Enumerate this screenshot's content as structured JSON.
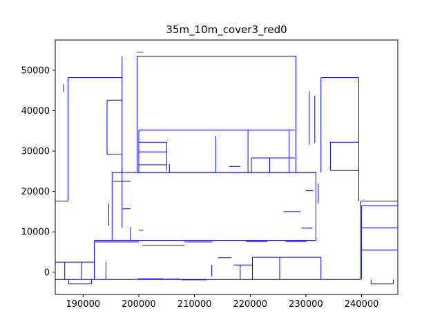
{
  "chart_data": {
    "type": "line",
    "title": "35m_10m_cover3_red0",
    "xlabel": "",
    "ylabel": "",
    "xlim": [
      185000,
      246500
    ],
    "ylim": [
      -5500,
      57500
    ],
    "xticks": [
      190000,
      200000,
      210000,
      220000,
      230000,
      240000
    ],
    "yticks": [
      0,
      10000,
      20000,
      30000,
      40000,
      50000
    ],
    "xtick_labels": [
      "190000",
      "200000",
      "210000",
      "220000",
      "230000",
      "240000"
    ],
    "ytick_labels": [
      "0",
      "10000",
      "20000",
      "30000",
      "40000",
      "50000"
    ],
    "grid": false,
    "line_color": "#0000ff",
    "series": [
      {
        "segments": [
          [
            [
              199700,
              53500
            ],
            [
              228200,
              53500
            ]
          ],
          [
            [
              199700,
              53500
            ],
            [
              199700,
              24700
            ]
          ],
          [
            [
              228200,
              53500
            ],
            [
              228200,
              24700
            ]
          ],
          [
            [
              200000,
              35200
            ],
            [
              228000,
              35200
            ]
          ],
          [
            [
              200000,
              24700
            ],
            [
              231800,
              24700
            ]
          ],
          [
            [
              195200,
              24700
            ],
            [
              231800,
              24700
            ]
          ],
          [
            [
              195200,
              24700
            ],
            [
              195200,
              7900
            ]
          ],
          [
            [
              231800,
              24700
            ],
            [
              231800,
              7900
            ]
          ],
          [
            [
              192000,
              7900
            ],
            [
              231800,
              7900
            ]
          ],
          [
            [
              192000,
              7900
            ],
            [
              192000,
              -1800
            ]
          ],
          [
            [
              185000,
              2500
            ],
            [
              192000,
              2500
            ]
          ],
          [
            [
              185000,
              -1800
            ],
            [
              239800,
              -1800
            ]
          ],
          [
            [
              239800,
              -1800
            ],
            [
              239800,
              17600
            ]
          ],
          [
            [
              239800,
              17600
            ],
            [
              246500,
              17600
            ]
          ],
          [
            [
              187300,
              48200
            ],
            [
              197000,
              48200
            ]
          ],
          [
            [
              187300,
              48200
            ],
            [
              187300,
              17600
            ]
          ],
          [
            [
              185000,
              17600
            ],
            [
              187300,
              17600
            ]
          ],
          [
            [
              185000,
              17600
            ],
            [
              185000,
              -1800
            ]
          ],
          [
            [
              197000,
              48200
            ],
            [
              197000,
              24700
            ]
          ],
          [
            [
              232700,
              48200
            ],
            [
              239500,
              48200
            ]
          ],
          [
            [
              232700,
              48200
            ],
            [
              232700,
              24700
            ]
          ],
          [
            [
              239500,
              48200
            ],
            [
              239500,
              17600
            ]
          ],
          [
            [
              194300,
              42600
            ],
            [
              194300,
              29200
            ]
          ],
          [
            [
              194300,
              29200
            ],
            [
              197000,
              29200
            ]
          ],
          [
            [
              194300,
              42600
            ],
            [
              197000,
              42600
            ]
          ],
          [
            [
              234400,
              32200
            ],
            [
              239500,
              32200
            ]
          ],
          [
            [
              234400,
              32200
            ],
            [
              234400,
              25200
            ]
          ],
          [
            [
              234400,
              25200
            ],
            [
              239500,
              25200
            ]
          ],
          [
            [
              200000,
              35200
            ],
            [
              200000,
              24700
            ]
          ],
          [
            [
              205000,
              32200
            ],
            [
              205000,
              25200
            ]
          ],
          [
            [
              200000,
              32200
            ],
            [
              205000,
              32200
            ]
          ],
          [
            [
              200000,
              29800
            ],
            [
              205000,
              29800
            ]
          ],
          [
            [
              200000,
              26600
            ],
            [
              205000,
              26600
            ]
          ],
          [
            [
              205500,
              26800
            ],
            [
              205500,
              24700
            ]
          ],
          [
            [
              213800,
              33700
            ],
            [
              213800,
              24700
            ]
          ],
          [
            [
              219600,
              35200
            ],
            [
              219600,
              24700
            ]
          ],
          [
            [
              220200,
              28300
            ],
            [
              228000,
              28300
            ]
          ],
          [
            [
              220200,
              28300
            ],
            [
              220200,
              24700
            ]
          ],
          [
            [
              223500,
              28300
            ],
            [
              223500,
              24700
            ]
          ],
          [
            [
              227000,
              35200
            ],
            [
              227000,
              24700
            ]
          ],
          [
            [
              197000,
              25700
            ],
            [
              197000,
              11000
            ]
          ],
          [
            [
              195400,
              22500
            ],
            [
              198500,
              22500
            ]
          ],
          [
            [
              197000,
              15700
            ],
            [
              198500,
              15700
            ]
          ],
          [
            [
              194600,
              17000
            ],
            [
              194600,
              11600
            ]
          ],
          [
            [
              200000,
              10400
            ],
            [
              200800,
              10400
            ]
          ],
          [
            [
              198500,
              7900
            ],
            [
              198500,
              11200
            ]
          ],
          [
            [
              192000,
              7500
            ],
            [
              200000,
              7500
            ]
          ],
          [
            [
              200700,
              6700
            ],
            [
              208200,
              6700
            ]
          ],
          [
            [
              208200,
              7500
            ],
            [
              213200,
              7500
            ]
          ],
          [
            [
              213500,
              7900
            ],
            [
              218800,
              7900
            ]
          ],
          [
            [
              219300,
              7600
            ],
            [
              223100,
              7600
            ]
          ],
          [
            [
              226300,
              7600
            ],
            [
              230100,
              7600
            ]
          ],
          [
            [
              220400,
              3700
            ],
            [
              232700,
              3700
            ]
          ],
          [
            [
              220400,
              3700
            ],
            [
              220400,
              -1800
            ]
          ],
          [
            [
              225300,
              3700
            ],
            [
              225300,
              -1800
            ]
          ],
          [
            [
              232700,
              3700
            ],
            [
              232700,
              -1800
            ]
          ],
          [
            [
              217000,
              1800
            ],
            [
              220400,
              1800
            ]
          ],
          [
            [
              218200,
              1800
            ],
            [
              218200,
              -1800
            ]
          ],
          [
            [
              213100,
              1800
            ],
            [
              213100,
              -1000
            ]
          ],
          [
            [
              199800,
              -1600
            ],
            [
              204400,
              -1600
            ]
          ],
          [
            [
              204800,
              -1700
            ],
            [
              207400,
              -1700
            ]
          ],
          [
            [
              207600,
              -1900
            ],
            [
              212200,
              -1900
            ]
          ],
          [
            [
              214200,
              3600
            ],
            [
              216600,
              3600
            ]
          ],
          [
            [
              186700,
              2500
            ],
            [
              186700,
              -1800
            ]
          ],
          [
            [
              187400,
              -1800
            ],
            [
              187400,
              -2900
            ]
          ],
          [
            [
              187400,
              -2900
            ],
            [
              191500,
              -2900
            ]
          ],
          [
            [
              189700,
              2500
            ],
            [
              189700,
              -1800
            ]
          ],
          [
            [
              191500,
              -1800
            ],
            [
              191500,
              -2900
            ]
          ],
          [
            [
              194100,
              2500
            ],
            [
              194100,
              -1800
            ]
          ],
          [
            [
              240000,
              16500
            ],
            [
              246500,
              16500
            ]
          ],
          [
            [
              240000,
              16500
            ],
            [
              240000,
              5500
            ]
          ],
          [
            [
              240000,
              11000
            ],
            [
              246500,
              11000
            ]
          ],
          [
            [
              240000,
              5500
            ],
            [
              246500,
              5500
            ]
          ],
          [
            [
              240000,
              5500
            ],
            [
              240000,
              -1800
            ]
          ],
          [
            [
              246500,
              5500
            ],
            [
              246500,
              -1800
            ]
          ],
          [
            [
              241700,
              -1800
            ],
            [
              241700,
              -2900
            ]
          ],
          [
            [
              241700,
              -2900
            ],
            [
              245700,
              -2900
            ]
          ],
          [
            [
              245700,
              -2900
            ],
            [
              245700,
              -1800
            ]
          ],
          [
            [
              199600,
              54500
            ],
            [
              200800,
              54500
            ]
          ],
          [
            [
              197000,
              53500
            ],
            [
              197000,
              48200
            ]
          ],
          [
            [
              186500,
              46500
            ],
            [
              186500,
              44700
            ]
          ],
          [
            [
              239500,
              46500
            ],
            [
              239500,
              44600
            ]
          ],
          [
            [
              230600,
              44800
            ],
            [
              230600,
              31600
            ]
          ],
          [
            [
              231600,
              43700
            ],
            [
              231600,
              32000
            ]
          ],
          [
            [
              226000,
              15000
            ],
            [
              229000,
              15000
            ]
          ],
          [
            [
              216200,
              26200
            ],
            [
              218200,
              26200
            ]
          ],
          [
            [
              229200,
              10900
            ],
            [
              231200,
              10900
            ]
          ],
          [
            [
              230000,
              20200
            ],
            [
              231300,
              20200
            ]
          ],
          [
            [
              232200,
              22000
            ],
            [
              232200,
              17000
            ]
          ]
        ]
      }
    ]
  }
}
